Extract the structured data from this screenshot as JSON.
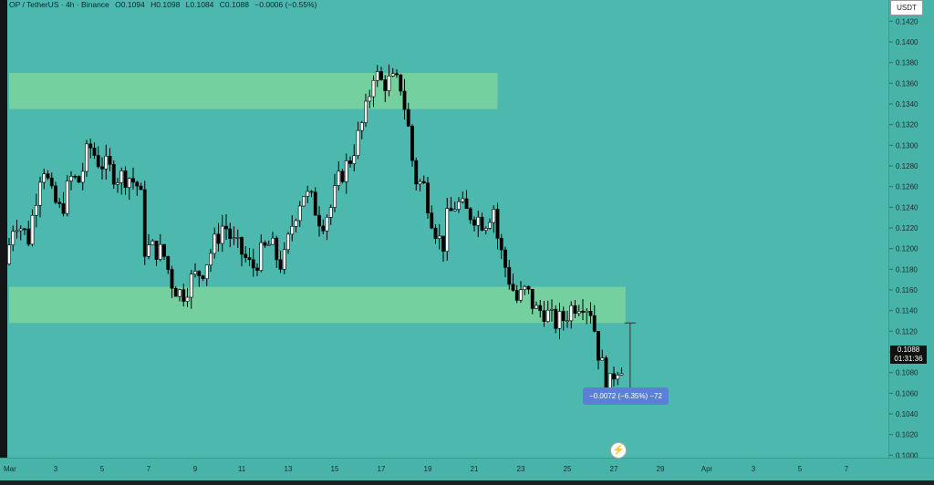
{
  "header": {
    "symbol": "OP / TetherUS · 4h · Binance",
    "open": "O0.1094",
    "high": "H0.1098",
    "low": "L0.1084",
    "close": "C0.1088",
    "change": "−0.0006 (−0.55%)"
  },
  "currency_button": "USDT",
  "price_tag": {
    "price": "0.1088",
    "countdown": "01:31:36"
  },
  "measure_label": "−0.0072 (−6.35%) −72",
  "colors": {
    "background": "#4db8ae",
    "zone": "#7dd39c",
    "up_candle": "#ffffff",
    "down_candle": "#000000",
    "measure": "#5b7fd6"
  },
  "icons": {
    "bolt": "lightning-bolt-icon"
  },
  "chart_data": {
    "type": "candlestick",
    "ylim": [
      0.098,
      0.143
    ],
    "y_ticks": [
      "0.1420",
      "0.1400",
      "0.1380",
      "0.1360",
      "0.1340",
      "0.1320",
      "0.1300",
      "0.1280",
      "0.1260",
      "0.1240",
      "0.1220",
      "0.1200",
      "0.1180",
      "0.1160",
      "0.1140",
      "0.1120",
      "0.1100",
      "0.1080",
      "0.1060",
      "0.1040",
      "0.1020",
      "0.1000",
      "0.0980"
    ],
    "x_ticks": [
      "Mar",
      "3",
      "5",
      "7",
      "9",
      "11",
      "13",
      "15",
      "17",
      "19",
      "21",
      "23",
      "25",
      "27",
      "29",
      "Apr",
      "3",
      "5",
      "7"
    ],
    "zones": [
      {
        "from_day": 1,
        "to_day": 22,
        "low": 0.1335,
        "high": 0.137
      },
      {
        "from_day": 1,
        "to_day": 27.5,
        "low": 0.1128,
        "high": 0.1163
      }
    ],
    "measure": {
      "day": 27.7,
      "from": 0.1128,
      "to": 0.1056
    },
    "path": [
      [
        1.0,
        0.1185
      ],
      [
        1.4,
        0.123
      ],
      [
        2.0,
        0.121
      ],
      [
        2.6,
        0.1285
      ],
      [
        3.0,
        0.125
      ],
      [
        3.4,
        0.1235
      ],
      [
        3.8,
        0.1268
      ],
      [
        4.2,
        0.1265
      ],
      [
        4.6,
        0.13
      ],
      [
        5.0,
        0.1285
      ],
      [
        5.4,
        0.1278
      ],
      [
        5.8,
        0.127
      ],
      [
        6.3,
        0.127
      ],
      [
        6.8,
        0.1258
      ],
      [
        7.0,
        0.12
      ],
      [
        7.4,
        0.12
      ],
      [
        7.8,
        0.1195
      ],
      [
        8.2,
        0.1165
      ],
      [
        8.6,
        0.1155
      ],
      [
        9.0,
        0.117
      ],
      [
        9.5,
        0.118
      ],
      [
        10.0,
        0.1205
      ],
      [
        10.4,
        0.1225
      ],
      [
        10.8,
        0.1205
      ],
      [
        11.2,
        0.1195
      ],
      [
        11.6,
        0.118
      ],
      [
        12.0,
        0.1195
      ],
      [
        12.4,
        0.1205
      ],
      [
        12.8,
        0.1185
      ],
      [
        13.0,
        0.119
      ],
      [
        13.4,
        0.123
      ],
      [
        13.8,
        0.1255
      ],
      [
        14.2,
        0.1245
      ],
      [
        14.6,
        0.1225
      ],
      [
        15.0,
        0.124
      ],
      [
        15.4,
        0.127
      ],
      [
        15.8,
        0.1285
      ],
      [
        16.2,
        0.131
      ],
      [
        16.6,
        0.134
      ],
      [
        16.8,
        0.1372
      ],
      [
        17.2,
        0.136
      ],
      [
        17.6,
        0.1362
      ],
      [
        18.0,
        0.1358
      ],
      [
        18.3,
        0.1322
      ],
      [
        18.6,
        0.1268
      ],
      [
        19.0,
        0.126
      ],
      [
        19.4,
        0.1225
      ],
      [
        19.8,
        0.12
      ],
      [
        20.0,
        0.1228
      ],
      [
        20.4,
        0.1245
      ],
      [
        20.8,
        0.1235
      ],
      [
        21.2,
        0.1232
      ],
      [
        21.6,
        0.1225
      ],
      [
        22.0,
        0.124
      ],
      [
        22.2,
        0.1205
      ],
      [
        22.6,
        0.1175
      ],
      [
        23.0,
        0.115
      ],
      [
        23.4,
        0.116
      ],
      [
        23.8,
        0.114
      ],
      [
        24.2,
        0.114
      ],
      [
        24.6,
        0.1128
      ],
      [
        25.0,
        0.1132
      ],
      [
        25.4,
        0.1145
      ],
      [
        25.8,
        0.115
      ],
      [
        26.2,
        0.114
      ],
      [
        26.5,
        0.11
      ],
      [
        26.8,
        0.1075
      ],
      [
        27.0,
        0.1068
      ],
      [
        27.2,
        0.1082
      ],
      [
        27.4,
        0.1088
      ]
    ]
  }
}
